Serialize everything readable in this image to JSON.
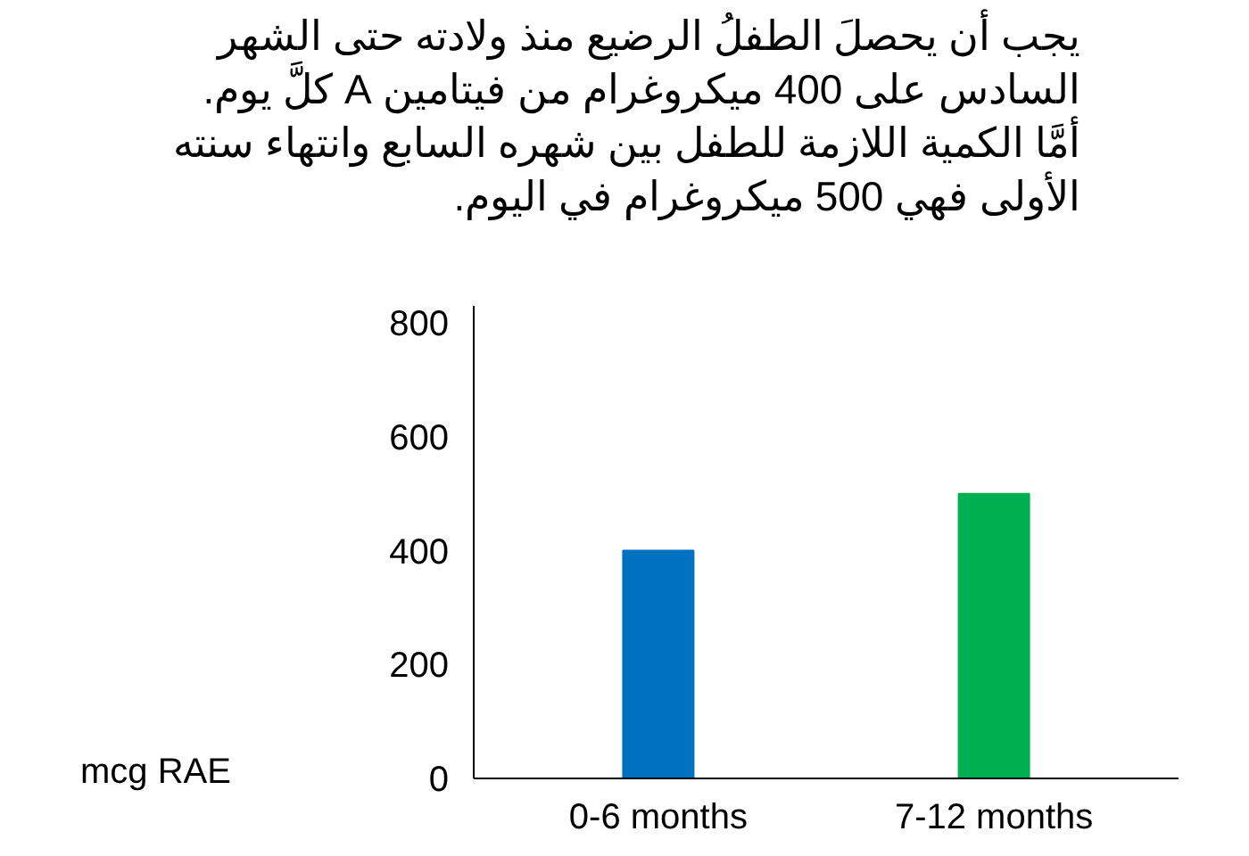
{
  "chart_data": {
    "type": "bar",
    "title": "يجب أن يحصلَ الطفلُ الرضيع منذ ولادته حتى الشهر\nالسادس على 400 ميكروغرام من فيتامين A كلَّ يوم.\nأمَّا الكمية اللازمة للطفل بين شهره السابع وانتهاء سنته\nالأولى فهي 500 ميكروغرام في اليوم.",
    "ylabel": "mcg RAE",
    "categories": [
      "0-6 months",
      "7-12 months"
    ],
    "values": [
      400,
      500
    ],
    "colors": [
      "#0070c0",
      "#00b050"
    ],
    "ylim": [
      0,
      830
    ],
    "yticks": [
      0,
      200,
      400,
      600,
      800
    ],
    "grid": false
  }
}
